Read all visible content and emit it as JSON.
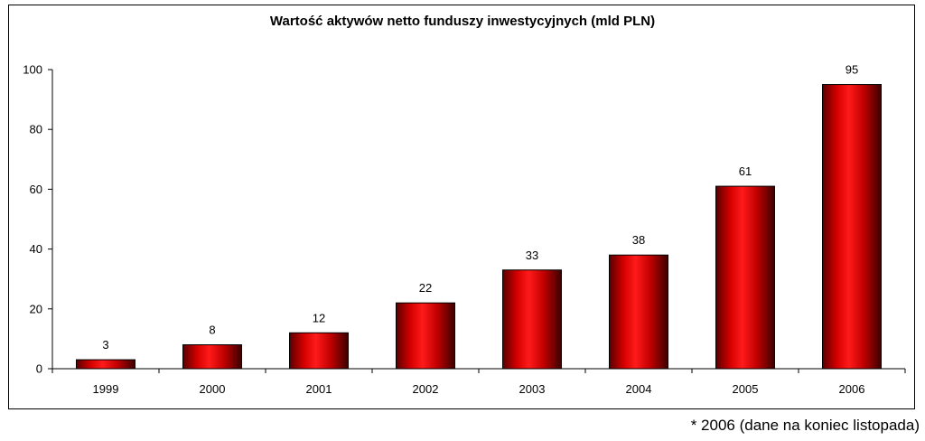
{
  "chart_data": {
    "type": "bar",
    "title": "Wartość aktywów netto funduszy inwestycyjnych (mld PLN)",
    "categories": [
      "1999",
      "2000",
      "2001",
      "2002",
      "2003",
      "2004",
      "2005",
      "2006"
    ],
    "values": [
      3,
      8,
      12,
      22,
      33,
      38,
      61,
      95
    ],
    "data_labels": [
      "3",
      "8",
      "12",
      "22",
      "33",
      "38",
      "61",
      "95"
    ],
    "ylim": [
      0,
      100
    ],
    "yticks": [
      0,
      20,
      40,
      60,
      80,
      100
    ],
    "ytick_labels": [
      "0",
      "20",
      "40",
      "60",
      "80",
      "100"
    ],
    "xlabel": "",
    "ylabel": "",
    "grid": false,
    "legend": "none",
    "bar_color": "#ff0000",
    "bar_edge_color": "#000000"
  },
  "footnote": "* 2006 (dane na koniec listopada)"
}
